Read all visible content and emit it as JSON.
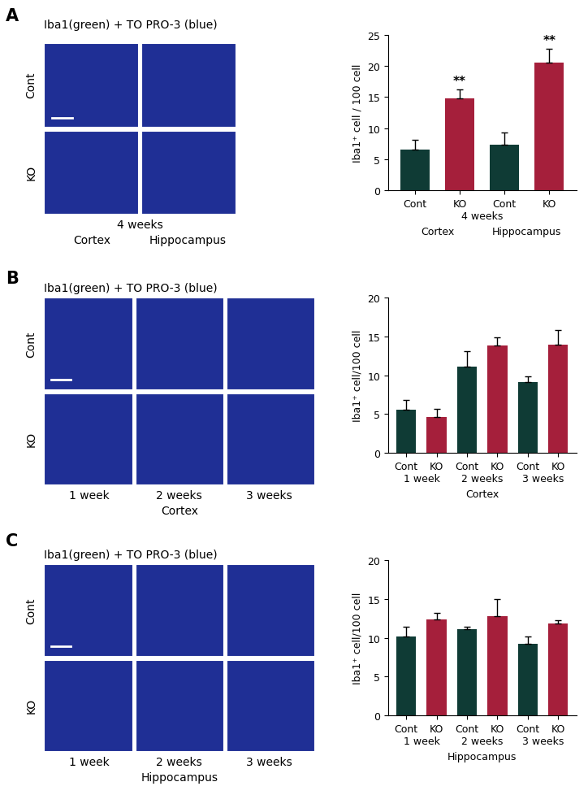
{
  "panels": [
    {
      "letter": "A",
      "image_title": "Iba1(green) + TO PRO-3 (blue)",
      "row_labels": [
        "Cont",
        "KO"
      ],
      "caption_rows": [
        [
          "4 weeks"
        ],
        [
          "Cortex",
          "Hippocampus"
        ]
      ]
    },
    {
      "letter": "B",
      "image_title": "Iba1(green) + TO PRO-3 (blue)",
      "row_labels": [
        "Cont",
        "KO"
      ],
      "caption_rows": [
        [
          "1 week",
          "2 weeks",
          "3 weeks"
        ],
        [
          "Cortex"
        ]
      ]
    },
    {
      "letter": "C",
      "image_title": "Iba1(green) + TO PRO-3 (blue)",
      "row_labels": [
        "Cont",
        "KO"
      ],
      "caption_rows": [
        [
          "1 week",
          "2 weeks",
          "3 weeks"
        ],
        [
          "Hippocampus"
        ]
      ]
    }
  ],
  "chart_data": [
    {
      "type": "bar",
      "categories": [
        "Cont",
        "KO",
        "Cont",
        "KO"
      ],
      "group_rows": [
        [
          "4 weeks"
        ],
        [
          "Cortex",
          "Hippocampus"
        ]
      ],
      "y_label": "Iba1⁺ cell / 100 cell",
      "values": [
        6.6,
        14.8,
        7.3,
        20.5
      ],
      "errors": [
        1.5,
        1.4,
        2.0,
        2.3
      ],
      "value_annotations": [
        null,
        "**",
        null,
        "**"
      ],
      "colors": [
        "#0f3b35",
        "#a51f3b",
        "#0f3b35",
        "#a51f3b"
      ],
      "ylim": [
        0,
        25
      ],
      "yticks": [
        0,
        5,
        10,
        15,
        20,
        25
      ]
    },
    {
      "type": "bar",
      "categories": [
        "Cont",
        "KO",
        "Cont",
        "KO",
        "Cont",
        "KO"
      ],
      "group_rows": [
        [
          "1 week",
          "2 weeks",
          "3 weeks"
        ]
      ],
      "x_label": "Cortex",
      "y_label": "Iba1⁺ cell/100 cell",
      "values": [
        5.6,
        4.6,
        11.1,
        13.8,
        9.1,
        13.9
      ],
      "errors": [
        1.2,
        1.1,
        2.0,
        1.1,
        0.7,
        1.9
      ],
      "colors": [
        "#0f3b35",
        "#a51f3b",
        "#0f3b35",
        "#a51f3b",
        "#0f3b35",
        "#a51f3b"
      ],
      "ylim": [
        0,
        20
      ],
      "yticks": [
        0,
        5,
        10,
        15,
        20
      ]
    },
    {
      "type": "bar",
      "categories": [
        "Cont",
        "KO",
        "Cont",
        "KO",
        "Cont",
        "KO"
      ],
      "group_rows": [
        [
          "1 week",
          "2 weeks",
          "3 weeks"
        ]
      ],
      "x_label": "Hippocampus",
      "y_label": "Iba1⁺ cell/100 cell",
      "values": [
        10.2,
        12.4,
        11.1,
        12.8,
        9.2,
        11.9
      ],
      "errors": [
        1.2,
        0.8,
        0.3,
        2.2,
        1.0,
        0.4
      ],
      "colors": [
        "#0f3b35",
        "#a51f3b",
        "#0f3b35",
        "#a51f3b",
        "#0f3b35",
        "#a51f3b"
      ],
      "ylim": [
        0,
        20
      ],
      "yticks": [
        0,
        5,
        10,
        15,
        20
      ]
    }
  ]
}
